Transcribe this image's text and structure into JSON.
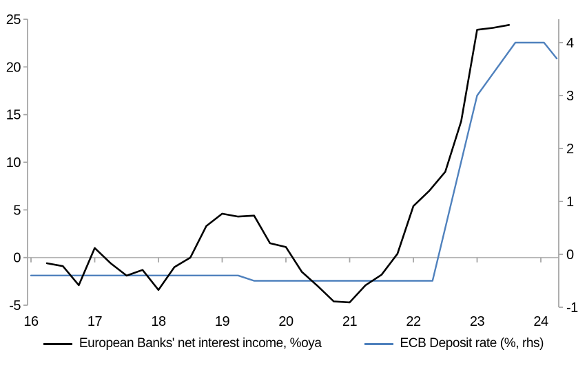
{
  "chart_data": {
    "type": "line",
    "x_axis": {
      "ticks": [
        16,
        17,
        18,
        19,
        20,
        21,
        22,
        23,
        24
      ],
      "range": [
        15.95,
        24.28
      ],
      "tick_position": "on-zero-line",
      "label_position": "bottom"
    },
    "left_y_axis": {
      "ticks": [
        25,
        20,
        15,
        10,
        5,
        0,
        -5
      ],
      "range": [
        -5,
        25
      ]
    },
    "right_y_axis": {
      "ticks": [
        4,
        3,
        2,
        1,
        0,
        -1
      ],
      "range": [
        -1.05,
        4.45
      ]
    },
    "zero_line": true,
    "grid": false,
    "legend_position": "bottom-center",
    "series": [
      {
        "name": "European Banks' net interest income, %oya",
        "axis": "left",
        "color": "#000000",
        "points": [
          [
            16.25,
            -0.6
          ],
          [
            16.5,
            -0.9
          ],
          [
            16.75,
            -2.9
          ],
          [
            17.0,
            1.0
          ],
          [
            17.25,
            -0.6
          ],
          [
            17.5,
            -1.9
          ],
          [
            17.75,
            -1.3
          ],
          [
            18.0,
            -3.4
          ],
          [
            18.25,
            -1.0
          ],
          [
            18.5,
            0.0
          ],
          [
            18.75,
            3.3
          ],
          [
            19.0,
            4.6
          ],
          [
            19.25,
            4.3
          ],
          [
            19.5,
            4.4
          ],
          [
            19.75,
            1.5
          ],
          [
            20.0,
            1.1
          ],
          [
            20.25,
            -1.5
          ],
          [
            20.5,
            -3.0
          ],
          [
            20.75,
            -4.6
          ],
          [
            21.0,
            -4.7
          ],
          [
            21.25,
            -2.9
          ],
          [
            21.5,
            -1.8
          ],
          [
            21.75,
            0.4
          ],
          [
            22.0,
            5.4
          ],
          [
            22.25,
            7.0
          ],
          [
            22.5,
            9.0
          ],
          [
            22.75,
            14.3
          ],
          [
            23.0,
            23.9
          ],
          [
            23.25,
            24.1
          ],
          [
            23.5,
            24.4
          ]
        ]
      },
      {
        "name": "ECB Deposit rate (%, rhs)",
        "axis": "right",
        "color": "#4F81BD",
        "points": [
          [
            16.0,
            -0.4
          ],
          [
            19.25,
            -0.4
          ],
          [
            19.5,
            -0.5
          ],
          [
            22.3,
            -0.5
          ],
          [
            23.0,
            3.0
          ],
          [
            23.6,
            4.0
          ],
          [
            24.05,
            4.0
          ],
          [
            24.25,
            3.7
          ]
        ]
      }
    ],
    "colors": {
      "axis_line": "#A6A6A6",
      "zero_line": "#B3B3B3",
      "text": "#000000",
      "background": "#FFFFFF"
    }
  }
}
